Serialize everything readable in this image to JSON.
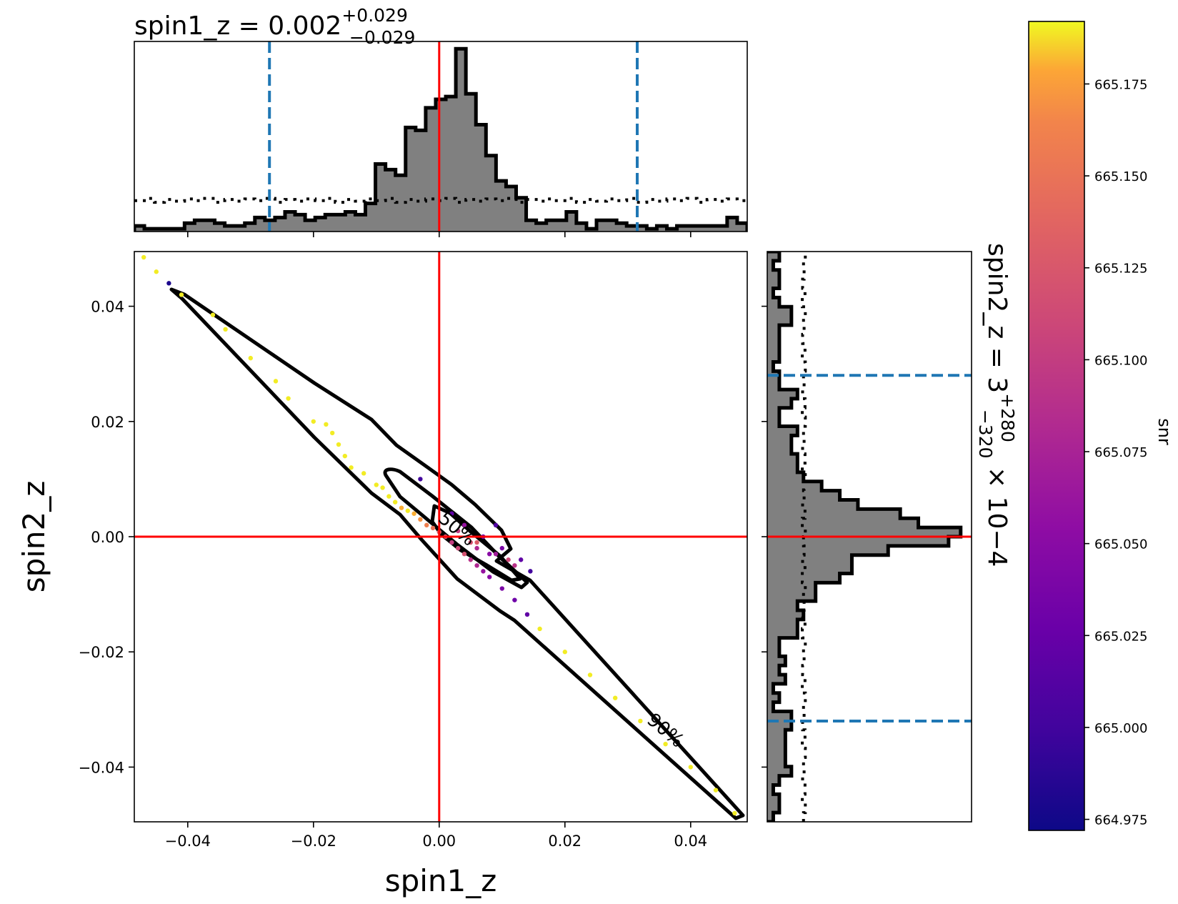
{
  "chart_data": {
    "type": "scatter",
    "title": "",
    "top_title": {
      "main": "spin1_z = 0.002",
      "sup": "+0.029",
      "sub": "−0.029"
    },
    "right_title": {
      "main": "spin2_z = 3",
      "sup": "+280",
      "sub": "−320",
      "tail": " × 10−4"
    },
    "xlabel": "spin1_z",
    "ylabel": "spin2_z",
    "xlim": [
      -0.0485,
      0.049
    ],
    "ylim": [
      -0.0495,
      0.0495
    ],
    "xticks": [
      -0.04,
      -0.02,
      0.0,
      0.02,
      0.04
    ],
    "yticks": [
      -0.04,
      -0.02,
      0.0,
      0.02,
      0.04
    ],
    "xtick_labels": [
      "−0.04",
      "−0.02",
      "0.00",
      "0.02",
      "0.04"
    ],
    "ytick_labels": [
      "−0.04",
      "−0.02",
      "0.00",
      "0.02",
      "0.04"
    ],
    "injection": {
      "spin1_z": 0.0,
      "spin2_z": 0.0,
      "color": "#ff0000"
    },
    "credible_interval": {
      "spin1_z": [
        -0.027,
        0.0315
      ],
      "spin2_z": [
        -0.032,
        0.028
      ],
      "color": "#1f77b4"
    },
    "contour_labels": [
      "50%",
      "90%"
    ],
    "colorbar": {
      "label": "snr",
      "range": [
        664.972,
        665.192
      ],
      "ticks": [
        664.975,
        665.0,
        665.025,
        665.05,
        665.075,
        665.1,
        665.125,
        665.15,
        665.175
      ],
      "tick_labels": [
        "664.975",
        "665.000",
        "665.025",
        "665.050",
        "665.075",
        "665.100",
        "665.125",
        "665.150",
        "665.175"
      ],
      "colormap": "plasma"
    },
    "hist_spin1_z": {
      "range": [
        -0.0485,
        0.049
      ],
      "counts": [
        1,
        0.5,
        0.5,
        0.5,
        0.5,
        1.5,
        2.0,
        2.0,
        1.5,
        1.0,
        1.0,
        1.5,
        2.5,
        2.0,
        2.5,
        3.5,
        3.0,
        2.0,
        2.5,
        3.0,
        3.0,
        3.5,
        3.0,
        5.0,
        12.0,
        11.0,
        10.0,
        18.5,
        18.0,
        22.0,
        23.5,
        24.0,
        32.5,
        24.5,
        19.0,
        13.5,
        9.0,
        8.0,
        6.0,
        2.0,
        1.5,
        2.0,
        2.0,
        3.5,
        1.5,
        0.5,
        2.0,
        2.0,
        1.5,
        1.0,
        1.0,
        0.5,
        1.0,
        0.5,
        1.0,
        1.0,
        1.0,
        1.0,
        1.0,
        2.5,
        1.5
      ],
      "prior_level": 5.5,
      "ymax": 32.5
    },
    "hist_spin2_z": {
      "range": [
        -0.0495,
        0.0495
      ],
      "counts": [
        1,
        2,
        2,
        1,
        2,
        4,
        3,
        3,
        3,
        3,
        4,
        4,
        1,
        2,
        1,
        3,
        2,
        3,
        2,
        2,
        5,
        5,
        6,
        5,
        8,
        8,
        12,
        14,
        14,
        20,
        30,
        32,
        25,
        22,
        15,
        12,
        9,
        6,
        5,
        5,
        4,
        4,
        5,
        2,
        2,
        4,
        5,
        2,
        2,
        1,
        2,
        2,
        2,
        2,
        4,
        4,
        2,
        1,
        2,
        2,
        1,
        2
      ],
      "prior_level": 6.0,
      "xmax": 32.5
    },
    "scatter_points": {
      "spin1_z": [
        -0.047,
        -0.045,
        -0.043,
        -0.041,
        -0.036,
        -0.034,
        -0.03,
        -0.026,
        -0.024,
        -0.02,
        -0.018,
        -0.017,
        -0.016,
        -0.015,
        -0.014,
        -0.012,
        -0.01,
        -0.009,
        -0.008,
        -0.007,
        -0.006,
        -0.005,
        -0.004,
        -0.003,
        -0.002,
        -0.001,
        0.0,
        0.001,
        0.002,
        0.003,
        0.004,
        0.005,
        0.006,
        0.007,
        0.008,
        0.01,
        0.012,
        0.014,
        0.016,
        0.02,
        0.024,
        0.028,
        0.032,
        0.036,
        0.04,
        0.044,
        0.047,
        -0.003,
        0.002,
        0.003,
        0.004,
        0.005,
        0.006,
        0.007,
        0.008,
        0.009,
        0.01,
        0.011,
        0.012,
        0.013,
        0.0145,
        0.006,
        0.009
      ],
      "spin2_z": [
        0.0485,
        0.046,
        0.044,
        0.042,
        0.0385,
        0.036,
        0.031,
        0.027,
        0.024,
        0.02,
        0.0195,
        0.018,
        0.016,
        0.014,
        0.012,
        0.011,
        0.009,
        0.0085,
        0.007,
        0.006,
        0.005,
        0.0045,
        0.004,
        0.003,
        0.002,
        0.0015,
        0.0008,
        0.0,
        -0.001,
        -0.002,
        -0.003,
        -0.004,
        -0.005,
        -0.006,
        -0.007,
        -0.009,
        -0.011,
        -0.0135,
        -0.016,
        -0.02,
        -0.024,
        -0.028,
        -0.032,
        -0.036,
        -0.04,
        -0.044,
        -0.048,
        0.01,
        0.004,
        0.001,
        0.002,
        -0.001,
        -0.002,
        0.0,
        -0.003,
        0.002,
        -0.002,
        -0.004,
        -0.005,
        -0.004,
        -0.006,
        -0.001,
        -0.003
      ],
      "snr": [
        665.19,
        665.19,
        664.98,
        665.19,
        665.19,
        665.19,
        665.19,
        665.19,
        665.19,
        665.19,
        665.19,
        665.19,
        665.19,
        665.19,
        665.19,
        665.19,
        665.19,
        665.19,
        665.19,
        665.19,
        665.18,
        665.19,
        665.18,
        665.17,
        665.16,
        665.15,
        665.13,
        665.12,
        665.1,
        665.11,
        665.12,
        665.09,
        665.08,
        665.06,
        665.05,
        665.04,
        665.03,
        665.02,
        665.19,
        665.19,
        665.19,
        665.19,
        665.19,
        665.19,
        665.19,
        665.19,
        665.19,
        665.0,
        665.02,
        665.1,
        665.06,
        665.12,
        665.08,
        665.03,
        665.05,
        665.01,
        665.04,
        665.11,
        665.09,
        665.02,
        665.0,
        665.13,
        665.07
      ]
    }
  }
}
